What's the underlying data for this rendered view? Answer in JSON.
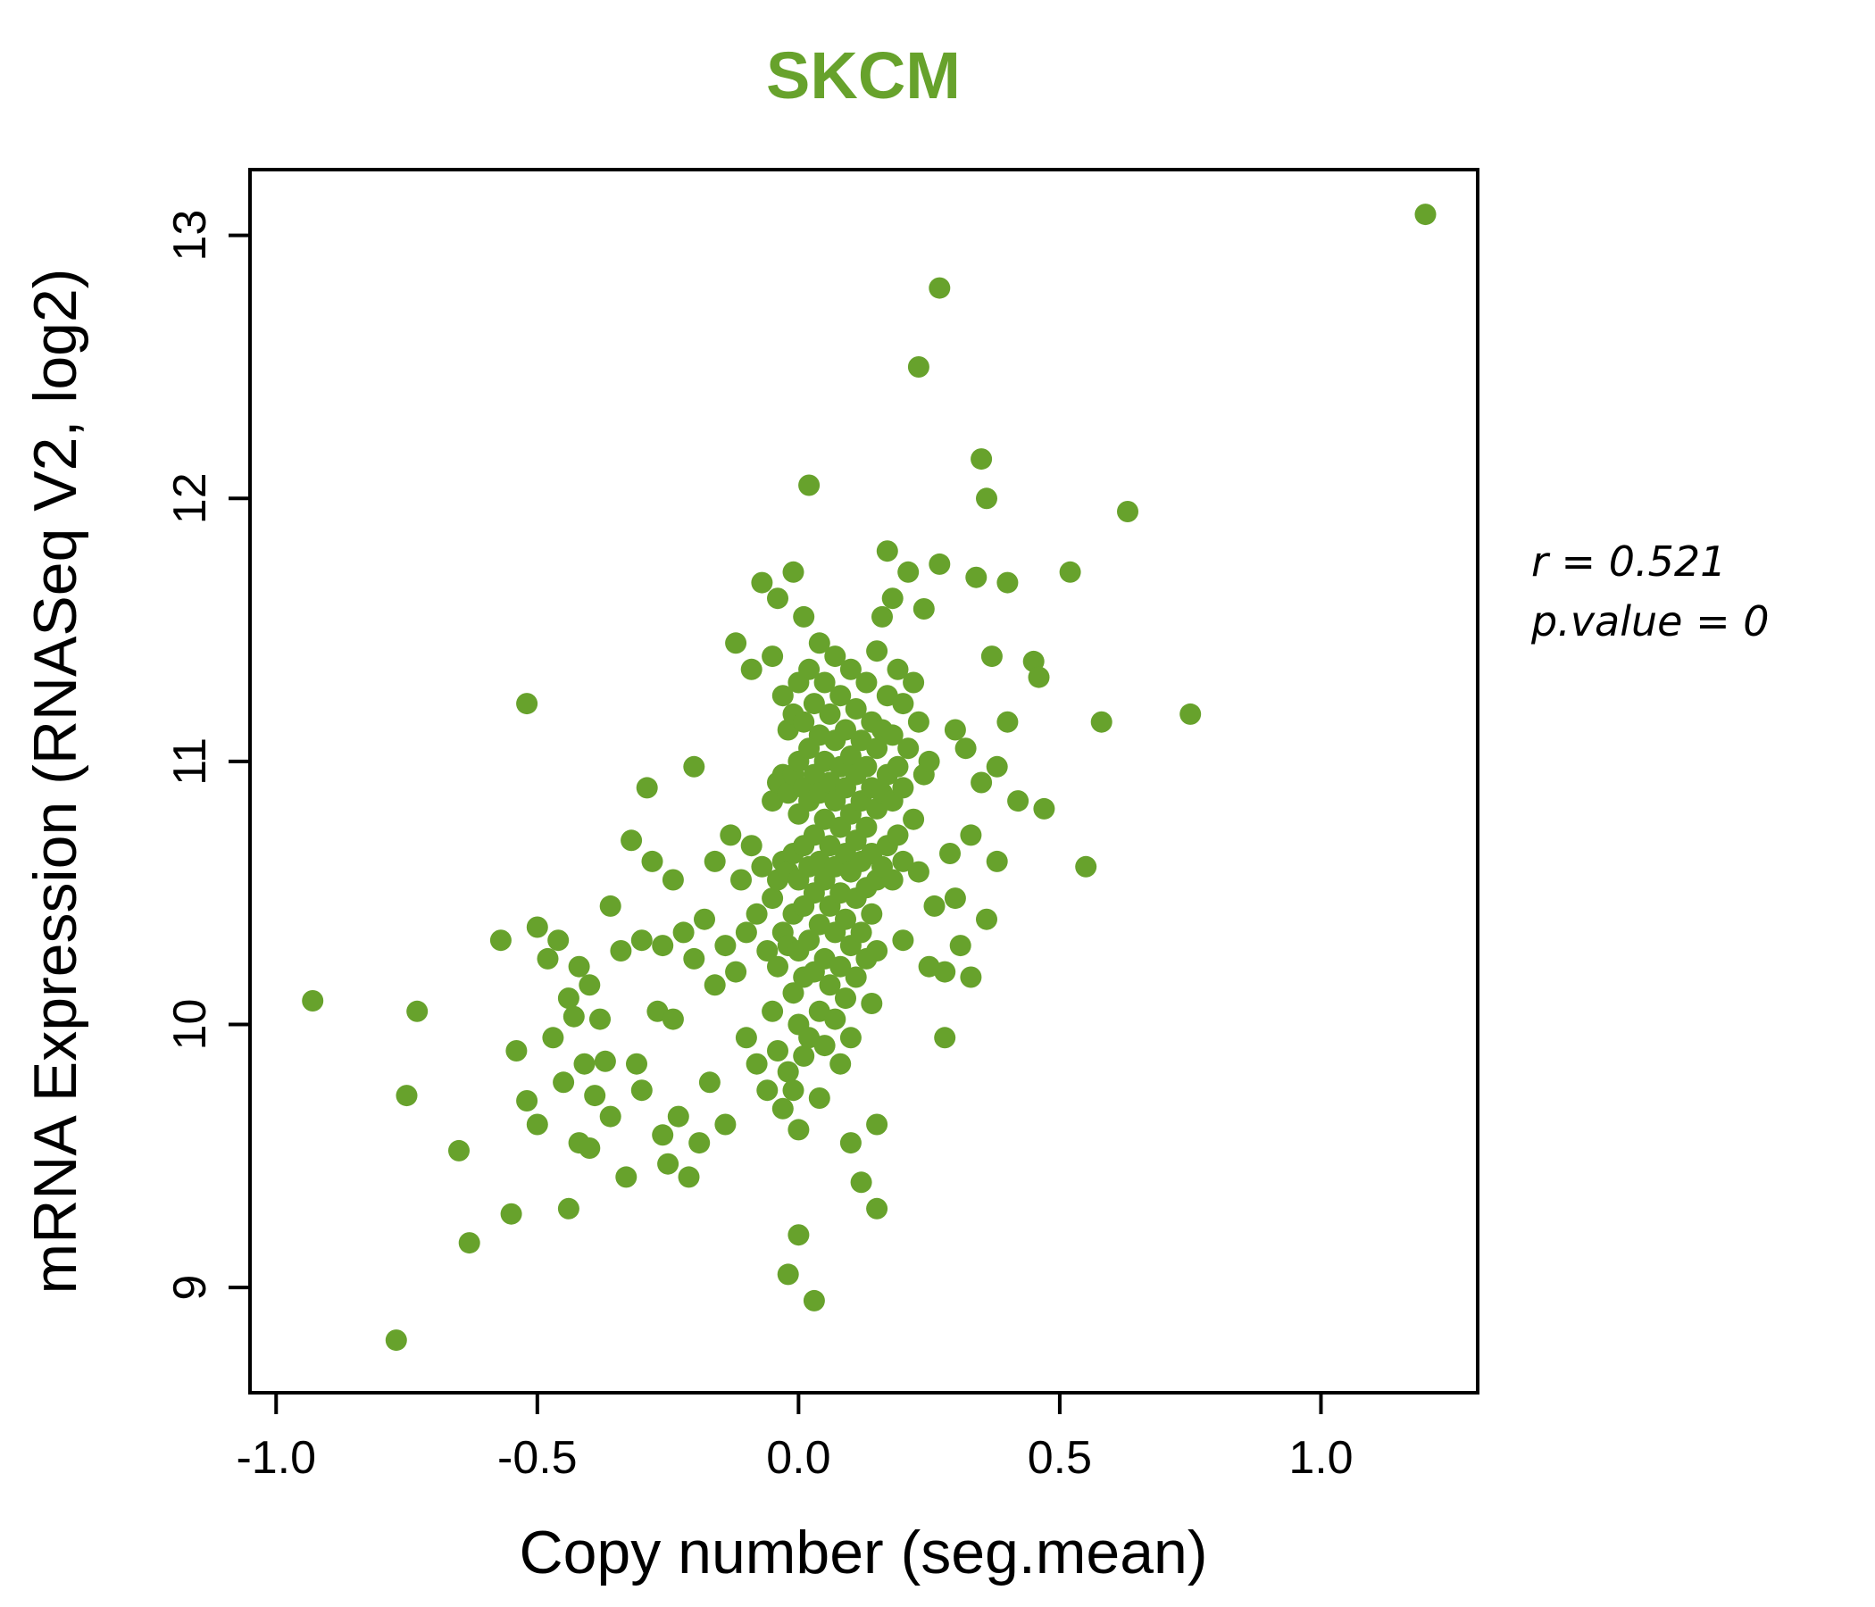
{
  "title_color": "#67A22C",
  "point_color": "#67A22C",
  "annotation": {
    "line1": "r = 0.521",
    "line2": "p.value = 0"
  },
  "chart_data": {
    "type": "scatter",
    "title": "SKCM",
    "xlabel": "Copy number (seg.mean)",
    "ylabel": "mRNA Expression (RNASeq V2, log2)",
    "xlim": [
      -1.05,
      1.3
    ],
    "ylim": [
      8.6,
      13.25
    ],
    "x_ticks": [
      -1.0,
      -0.5,
      0.0,
      0.5,
      1.0
    ],
    "x_tick_labels": [
      "-1.0",
      "-0.5",
      "0.0",
      "0.5",
      "1.0"
    ],
    "y_ticks": [
      9,
      10,
      11,
      12,
      13
    ],
    "y_tick_labels": [
      "9",
      "10",
      "11",
      "12",
      "13"
    ],
    "grid": false,
    "legend": "none",
    "points": [
      [
        -0.93,
        10.09
      ],
      [
        -0.77,
        8.8
      ],
      [
        -0.75,
        9.73
      ],
      [
        -0.73,
        10.05
      ],
      [
        -0.65,
        9.52
      ],
      [
        -0.63,
        9.17
      ],
      [
        -0.57,
        10.32
      ],
      [
        -0.55,
        9.28
      ],
      [
        -0.54,
        9.9
      ],
      [
        -0.52,
        11.22
      ],
      [
        -0.52,
        9.71
      ],
      [
        -0.5,
        10.37
      ],
      [
        -0.5,
        9.62
      ],
      [
        -0.48,
        10.25
      ],
      [
        -0.47,
        9.95
      ],
      [
        -0.46,
        10.32
      ],
      [
        -0.45,
        9.78
      ],
      [
        -0.44,
        10.1
      ],
      [
        -0.44,
        9.3
      ],
      [
        -0.43,
        10.03
      ],
      [
        -0.42,
        9.55
      ],
      [
        -0.42,
        10.22
      ],
      [
        -0.41,
        9.85
      ],
      [
        -0.4,
        10.15
      ],
      [
        -0.4,
        9.53
      ],
      [
        -0.39,
        9.73
      ],
      [
        -0.38,
        10.02
      ],
      [
        -0.37,
        9.86
      ],
      [
        -0.36,
        10.45
      ],
      [
        -0.36,
        9.65
      ],
      [
        -0.34,
        10.28
      ],
      [
        -0.33,
        9.42
      ],
      [
        -0.32,
        10.7
      ],
      [
        -0.31,
        9.85
      ],
      [
        -0.3,
        10.32
      ],
      [
        -0.3,
        9.75
      ],
      [
        -0.29,
        10.9
      ],
      [
        -0.28,
        10.62
      ],
      [
        -0.27,
        10.05
      ],
      [
        -0.26,
        9.58
      ],
      [
        -0.26,
        10.3
      ],
      [
        -0.25,
        9.47
      ],
      [
        -0.24,
        10.55
      ],
      [
        -0.24,
        10.02
      ],
      [
        -0.23,
        9.65
      ],
      [
        -0.22,
        10.35
      ],
      [
        -0.21,
        9.42
      ],
      [
        -0.2,
        10.98
      ],
      [
        -0.2,
        10.25
      ],
      [
        -0.19,
        9.55
      ],
      [
        -0.18,
        10.4
      ],
      [
        -0.17,
        9.78
      ],
      [
        -0.16,
        10.15
      ],
      [
        -0.16,
        10.62
      ],
      [
        -0.14,
        10.3
      ],
      [
        -0.14,
        9.62
      ],
      [
        -0.13,
        10.72
      ],
      [
        -0.12,
        11.45
      ],
      [
        -0.12,
        10.2
      ],
      [
        -0.11,
        10.55
      ],
      [
        -0.1,
        9.95
      ],
      [
        -0.1,
        10.35
      ],
      [
        -0.09,
        11.35
      ],
      [
        -0.09,
        10.68
      ],
      [
        -0.08,
        10.42
      ],
      [
        -0.08,
        9.85
      ],
      [
        -0.07,
        11.68
      ],
      [
        -0.07,
        10.6
      ],
      [
        -0.06,
        10.28
      ],
      [
        -0.06,
        9.75
      ],
      [
        -0.05,
        11.4
      ],
      [
        -0.05,
        10.85
      ],
      [
        -0.05,
        10.48
      ],
      [
        -0.05,
        10.05
      ],
      [
        -0.04,
        11.62
      ],
      [
        -0.04,
        10.92
      ],
      [
        -0.04,
        10.55
      ],
      [
        -0.04,
        10.22
      ],
      [
        -0.04,
        9.9
      ],
      [
        -0.03,
        11.25
      ],
      [
        -0.03,
        10.95
      ],
      [
        -0.03,
        10.62
      ],
      [
        -0.03,
        10.35
      ],
      [
        -0.03,
        9.68
      ],
      [
        -0.02,
        11.12
      ],
      [
        -0.02,
        10.88
      ],
      [
        -0.02,
        10.58
      ],
      [
        -0.02,
        10.3
      ],
      [
        -0.02,
        9.82
      ],
      [
        -0.02,
        9.05
      ],
      [
        -0.01,
        11.72
      ],
      [
        -0.01,
        11.18
      ],
      [
        -0.01,
        10.95
      ],
      [
        -0.01,
        10.65
      ],
      [
        -0.01,
        10.42
      ],
      [
        -0.01,
        10.12
      ],
      [
        -0.01,
        9.75
      ],
      [
        0.0,
        11.3
      ],
      [
        0.0,
        11.0
      ],
      [
        0.0,
        10.8
      ],
      [
        0.0,
        10.55
      ],
      [
        0.0,
        10.28
      ],
      [
        0.0,
        10.0
      ],
      [
        0.0,
        9.6
      ],
      [
        0.0,
        9.2
      ],
      [
        0.01,
        11.55
      ],
      [
        0.01,
        11.15
      ],
      [
        0.01,
        10.9
      ],
      [
        0.01,
        10.68
      ],
      [
        0.01,
        10.45
      ],
      [
        0.01,
        10.18
      ],
      [
        0.01,
        9.88
      ],
      [
        0.02,
        12.05
      ],
      [
        0.02,
        11.35
      ],
      [
        0.02,
        11.05
      ],
      [
        0.02,
        10.85
      ],
      [
        0.02,
        10.6
      ],
      [
        0.02,
        10.32
      ],
      [
        0.02,
        9.95
      ],
      [
        0.03,
        8.95
      ],
      [
        0.03,
        11.22
      ],
      [
        0.03,
        10.95
      ],
      [
        0.03,
        10.72
      ],
      [
        0.03,
        10.5
      ],
      [
        0.03,
        10.2
      ],
      [
        0.04,
        11.45
      ],
      [
        0.04,
        11.1
      ],
      [
        0.04,
        10.88
      ],
      [
        0.04,
        10.62
      ],
      [
        0.04,
        10.38
      ],
      [
        0.04,
        10.05
      ],
      [
        0.04,
        9.72
      ],
      [
        0.05,
        11.3
      ],
      [
        0.05,
        11.0
      ],
      [
        0.05,
        10.78
      ],
      [
        0.05,
        10.55
      ],
      [
        0.05,
        10.25
      ],
      [
        0.05,
        9.92
      ],
      [
        0.06,
        11.18
      ],
      [
        0.06,
        10.92
      ],
      [
        0.06,
        10.68
      ],
      [
        0.06,
        10.45
      ],
      [
        0.06,
        10.15
      ],
      [
        0.07,
        11.4
      ],
      [
        0.07,
        11.08
      ],
      [
        0.07,
        10.85
      ],
      [
        0.07,
        10.6
      ],
      [
        0.07,
        10.35
      ],
      [
        0.07,
        10.02
      ],
      [
        0.08,
        11.25
      ],
      [
        0.08,
        10.98
      ],
      [
        0.08,
        10.75
      ],
      [
        0.08,
        10.5
      ],
      [
        0.08,
        10.22
      ],
      [
        0.08,
        9.85
      ],
      [
        0.09,
        11.12
      ],
      [
        0.09,
        10.9
      ],
      [
        0.09,
        10.65
      ],
      [
        0.09,
        10.4
      ],
      [
        0.09,
        10.1
      ],
      [
        0.1,
        11.35
      ],
      [
        0.1,
        11.02
      ],
      [
        0.1,
        10.8
      ],
      [
        0.1,
        10.58
      ],
      [
        0.1,
        10.3
      ],
      [
        0.1,
        9.95
      ],
      [
        0.1,
        9.55
      ],
      [
        0.11,
        11.2
      ],
      [
        0.11,
        10.95
      ],
      [
        0.11,
        10.7
      ],
      [
        0.11,
        10.48
      ],
      [
        0.11,
        10.18
      ],
      [
        0.12,
        11.08
      ],
      [
        0.12,
        10.85
      ],
      [
        0.12,
        10.62
      ],
      [
        0.12,
        10.35
      ],
      [
        0.12,
        9.4
      ],
      [
        0.13,
        11.3
      ],
      [
        0.13,
        10.98
      ],
      [
        0.13,
        10.75
      ],
      [
        0.13,
        10.52
      ],
      [
        0.13,
        10.25
      ],
      [
        0.14,
        11.15
      ],
      [
        0.14,
        10.9
      ],
      [
        0.14,
        10.65
      ],
      [
        0.14,
        10.42
      ],
      [
        0.14,
        10.08
      ],
      [
        0.15,
        11.42
      ],
      [
        0.15,
        11.05
      ],
      [
        0.15,
        10.82
      ],
      [
        0.15,
        10.55
      ],
      [
        0.15,
        10.28
      ],
      [
        0.15,
        9.62
      ],
      [
        0.15,
        9.3
      ],
      [
        0.16,
        11.55
      ],
      [
        0.16,
        11.12
      ],
      [
        0.16,
        10.88
      ],
      [
        0.16,
        10.6
      ],
      [
        0.17,
        11.8
      ],
      [
        0.17,
        11.25
      ],
      [
        0.17,
        10.95
      ],
      [
        0.17,
        10.68
      ],
      [
        0.18,
        11.62
      ],
      [
        0.18,
        11.1
      ],
      [
        0.18,
        10.85
      ],
      [
        0.18,
        10.55
      ],
      [
        0.19,
        11.35
      ],
      [
        0.19,
        10.98
      ],
      [
        0.19,
        10.72
      ],
      [
        0.2,
        11.22
      ],
      [
        0.2,
        10.9
      ],
      [
        0.2,
        10.62
      ],
      [
        0.2,
        10.32
      ],
      [
        0.21,
        11.72
      ],
      [
        0.21,
        11.05
      ],
      [
        0.22,
        11.3
      ],
      [
        0.22,
        10.78
      ],
      [
        0.23,
        12.5
      ],
      [
        0.23,
        11.15
      ],
      [
        0.23,
        10.58
      ],
      [
        0.24,
        11.58
      ],
      [
        0.24,
        10.95
      ],
      [
        0.25,
        11.0
      ],
      [
        0.25,
        10.22
      ],
      [
        0.26,
        10.45
      ],
      [
        0.27,
        12.8
      ],
      [
        0.27,
        11.75
      ],
      [
        0.28,
        10.2
      ],
      [
        0.28,
        9.95
      ],
      [
        0.29,
        10.65
      ],
      [
        0.3,
        11.12
      ],
      [
        0.3,
        10.48
      ],
      [
        0.31,
        10.3
      ],
      [
        0.32,
        11.05
      ],
      [
        0.33,
        10.72
      ],
      [
        0.33,
        10.18
      ],
      [
        0.34,
        11.7
      ],
      [
        0.35,
        12.15
      ],
      [
        0.35,
        10.92
      ],
      [
        0.36,
        12.0
      ],
      [
        0.36,
        10.4
      ],
      [
        0.37,
        11.4
      ],
      [
        0.38,
        10.98
      ],
      [
        0.38,
        10.62
      ],
      [
        0.4,
        11.68
      ],
      [
        0.4,
        11.15
      ],
      [
        0.42,
        10.85
      ],
      [
        0.45,
        11.38
      ],
      [
        0.46,
        11.32
      ],
      [
        0.47,
        10.82
      ],
      [
        0.52,
        11.72
      ],
      [
        0.55,
        10.6
      ],
      [
        0.58,
        11.15
      ],
      [
        0.63,
        11.95
      ],
      [
        0.75,
        11.18
      ],
      [
        1.2,
        13.08
      ]
    ]
  }
}
